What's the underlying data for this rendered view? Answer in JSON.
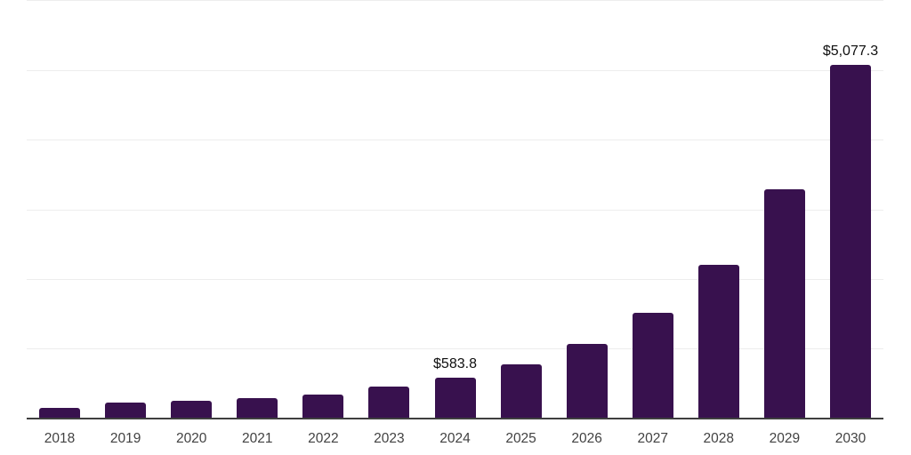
{
  "chart_data": {
    "type": "bar",
    "title": "",
    "xlabel": "",
    "ylabel": "",
    "categories": [
      "2018",
      "2019",
      "2020",
      "2021",
      "2022",
      "2023",
      "2024",
      "2025",
      "2026",
      "2027",
      "2028",
      "2029",
      "2030"
    ],
    "values": [
      148,
      230,
      250,
      295,
      348,
      460,
      583.8,
      780,
      1076,
      1520,
      2205,
      3298,
      5077.3
    ],
    "value_labels": {
      "2024": "$583.8",
      "2030": "$5,077.3"
    },
    "currency": "USD",
    "ylim": [
      0,
      6000
    ],
    "grid": {
      "horizontal": true,
      "interval": 1000
    },
    "legend": "none"
  },
  "style": {
    "bar_color": "#38114E",
    "axis_color": "#3f3f3f",
    "grid_color": "#ededed",
    "tick_label_color": "#424242",
    "value_label_color": "#0f0f0f",
    "background": "#ffffff"
  }
}
